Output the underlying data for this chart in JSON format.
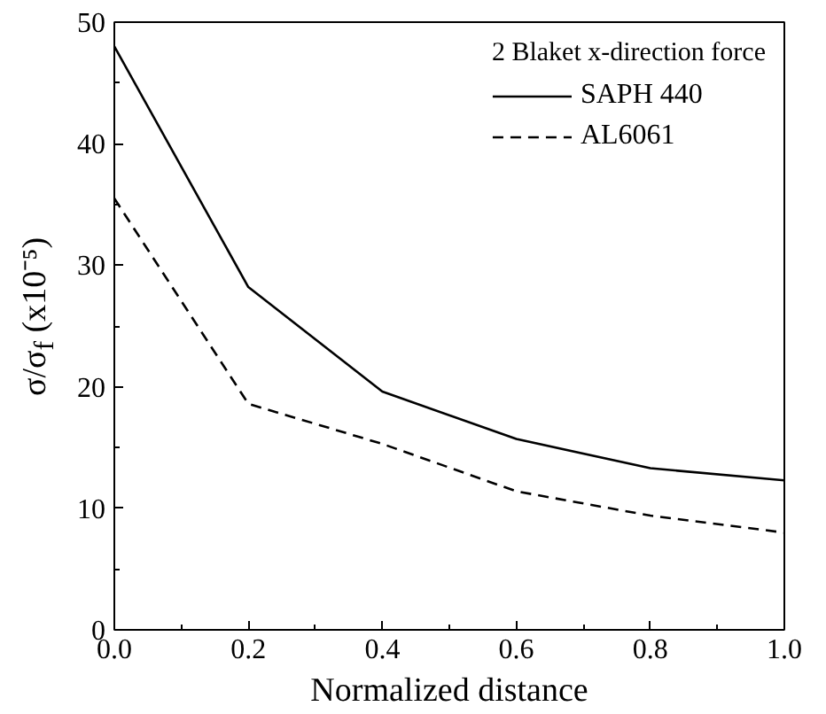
{
  "chart_data": {
    "type": "line",
    "xlabel": "Normalized distance",
    "ylabel": "σ/σ$_{f}$ (x10⁻⁵)",
    "legend_title": "2 Blaket x-direction force",
    "x": [
      0.0,
      0.2,
      0.4,
      0.6,
      0.8,
      1.0
    ],
    "series": [
      {
        "name": "SAPH 440",
        "color": "#000000",
        "line_style": "solid",
        "values": [
          48.0,
          28.2,
          19.6,
          15.7,
          13.3,
          12.3
        ]
      },
      {
        "name": "AL6061",
        "color": "#000000",
        "line_style": "dashed",
        "values": [
          35.5,
          18.6,
          15.3,
          11.4,
          9.4,
          8.0
        ]
      }
    ],
    "xlim": [
      0.0,
      1.0
    ],
    "xticks": [
      {
        "value": 0,
        "label": "0.0"
      },
      0.2,
      0.4,
      0.6,
      0.8,
      {
        "value": 1,
        "label": "1.0"
      }
    ],
    "ylim": [
      0,
      50
    ],
    "yticks": [
      0,
      10,
      20,
      30,
      40,
      50
    ],
    "grid": false,
    "legend": "top right"
  }
}
